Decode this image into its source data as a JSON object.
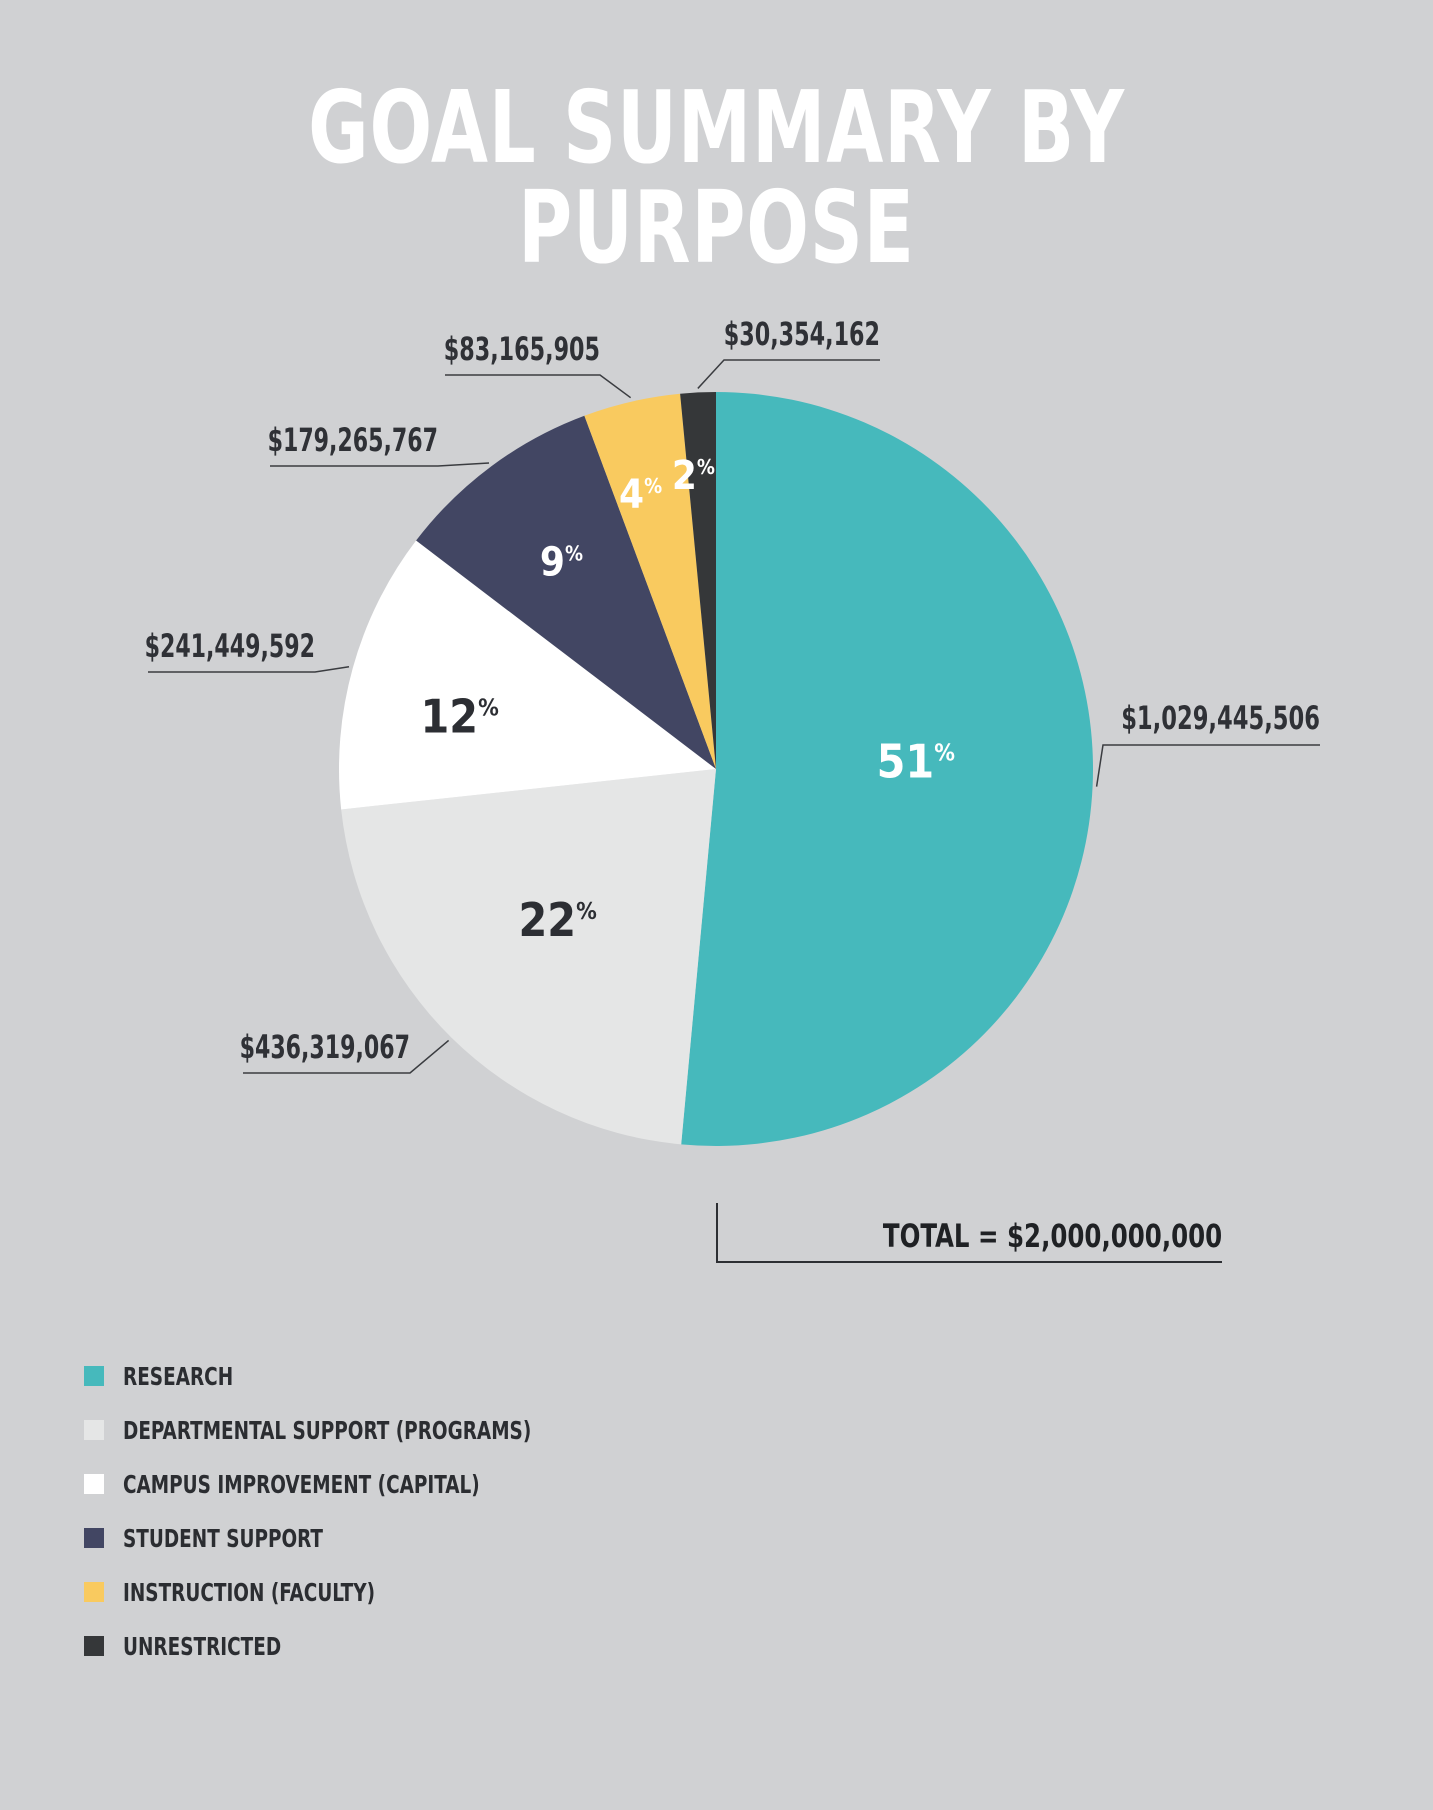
{
  "title": "GOAL SUMMARY BY PURPOSE",
  "total_label": "TOTAL = $2,000,000,000",
  "chart_data": {
    "type": "pie",
    "title": "GOAL SUMMARY BY PURPOSE",
    "slices": [
      {
        "name": "RESEARCH",
        "value": 1029445506,
        "amount_label": "$1,029,445,506",
        "percent": "51",
        "color": "#46b9bc",
        "pct_color": "#ffffff"
      },
      {
        "name": "DEPARTMENTAL SUPPORT (PROGRAMS)",
        "value": 436319067,
        "amount_label": "$436,319,067",
        "percent": "22",
        "color": "#e5e6e6",
        "pct_color": "#2c2e33"
      },
      {
        "name": "CAMPUS IMPROVEMENT (CAPITAL)",
        "value": 241449592,
        "amount_label": "$241,449,592",
        "percent": "12",
        "color": "#ffffff",
        "pct_color": "#2c2e33"
      },
      {
        "name": "STUDENT SUPPORT",
        "value": 179265767,
        "amount_label": "$179,265,767",
        "percent": "9",
        "color": "#424663",
        "pct_color": "#ffffff"
      },
      {
        "name": "INSTRUCTION (FACULTY)",
        "value": 83165905,
        "amount_label": "$83,165,905",
        "percent": "4",
        "color": "#f9ca5f",
        "pct_color": "#ffffff"
      },
      {
        "name": "UNRESTRICTED",
        "value": 30354162,
        "amount_label": "$30,354,162",
        "percent": "2",
        "color": "#353739",
        "pct_color": "#ffffff"
      }
    ],
    "percent_symbol": "%",
    "legend_position": "bottom-left"
  }
}
